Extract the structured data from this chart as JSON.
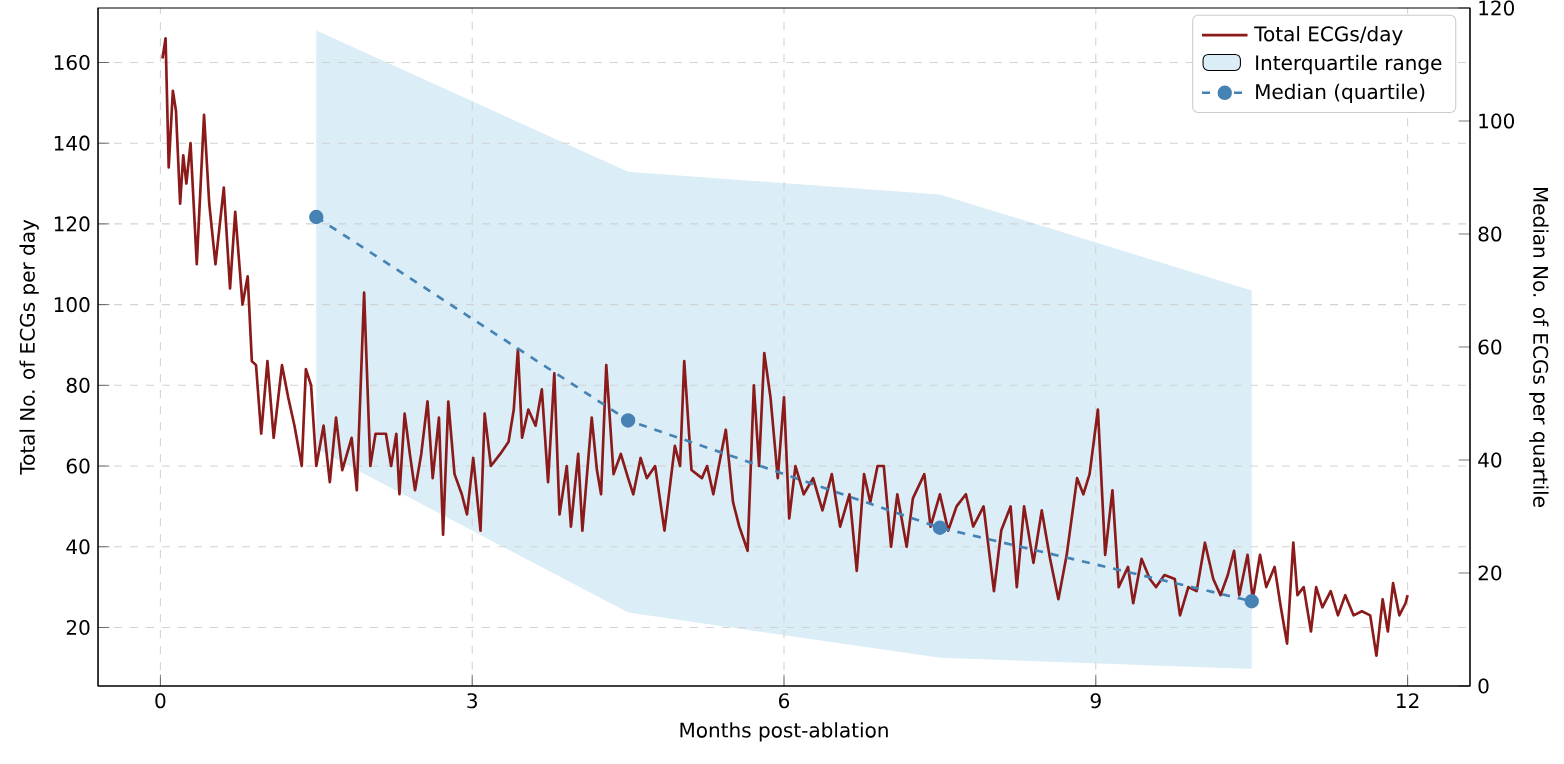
{
  "chart_data": {
    "type": "line",
    "xlabel": "Months post-ablation",
    "ylabel": "Total No. of ECGs per day",
    "y2label": "Median No. of ECGs per quartile",
    "xlim": [
      -0.6,
      12.6
    ],
    "xticks": [
      0,
      3,
      6,
      9,
      12
    ],
    "ylim": [
      5.5,
      173.5
    ],
    "yticks": [
      20,
      40,
      60,
      80,
      100,
      120,
      140,
      160
    ],
    "y2lim": [
      0,
      120
    ],
    "y2ticks": [
      0,
      20,
      40,
      60,
      80,
      100,
      120
    ],
    "grid": true,
    "legend": "top right",
    "series": [
      {
        "name": "Total ECGs/day",
        "type": "line",
        "color": "#8b1a1a",
        "line_style": "solid",
        "marker": "none",
        "x": [
          0.02,
          0.05,
          0.08,
          0.12,
          0.15,
          0.19,
          0.22,
          0.25,
          0.29,
          0.35,
          0.42,
          0.47,
          0.53,
          0.61,
          0.67,
          0.72,
          0.79,
          0.84,
          0.88,
          0.92,
          0.97,
          1.03,
          1.09,
          1.17,
          1.23,
          1.29,
          1.36,
          1.4,
          1.45,
          1.5,
          1.57,
          1.63,
          1.69,
          1.75,
          1.84,
          1.89,
          1.96,
          2.02,
          2.07,
          2.17,
          2.22,
          2.27,
          2.3,
          2.35,
          2.4,
          2.45,
          2.51,
          2.57,
          2.62,
          2.68,
          2.72,
          2.77,
          2.83,
          2.9,
          2.95,
          3.01,
          3.08,
          3.12,
          3.18,
          3.27,
          3.35,
          3.4,
          3.44,
          3.48,
          3.54,
          3.61,
          3.67,
          3.73,
          3.79,
          3.84,
          3.91,
          3.95,
          4.02,
          4.06,
          4.15,
          4.2,
          4.24,
          4.29,
          4.36,
          4.43,
          4.5,
          4.55,
          4.62,
          4.68,
          4.76,
          4.85,
          4.95,
          5.0,
          5.04,
          5.11,
          5.21,
          5.26,
          5.32,
          5.44,
          5.51,
          5.57,
          5.65,
          5.71,
          5.76,
          5.81,
          5.87,
          5.94,
          6.0,
          6.05,
          6.11,
          6.19,
          6.28,
          6.37,
          6.46,
          6.54,
          6.63,
          6.7,
          6.77,
          6.83,
          6.9,
          6.96,
          7.03,
          7.09,
          7.18,
          7.24,
          7.35,
          7.41,
          7.5,
          7.58,
          7.66,
          7.75,
          7.82,
          7.92,
          8.02,
          8.09,
          8.18,
          8.24,
          8.31,
          8.4,
          8.48,
          8.56,
          8.64,
          8.72,
          8.82,
          8.88,
          8.94,
          9.02,
          9.09,
          9.16,
          9.22,
          9.31,
          9.36,
          9.44,
          9.52,
          9.58,
          9.66,
          9.76,
          9.81,
          9.89,
          9.97,
          10.05,
          10.13,
          10.2,
          10.27,
          10.33,
          10.38,
          10.46,
          10.51,
          10.58,
          10.64,
          10.72,
          10.78,
          10.84,
          10.9,
          10.94,
          11.0,
          11.07,
          11.12,
          11.18,
          11.26,
          11.33,
          11.4,
          11.48,
          11.56,
          11.64,
          11.7,
          11.76,
          11.81,
          11.86,
          11.92,
          11.98,
          12.0
        ],
        "values": [
          161,
          166,
          134,
          153,
          148,
          125,
          137,
          130,
          140,
          110,
          147,
          125,
          110,
          129,
          104,
          123,
          100,
          107,
          86,
          85,
          68,
          86,
          67,
          85,
          77,
          70,
          60,
          84,
          80,
          60,
          70,
          56,
          72,
          59,
          67,
          54,
          103,
          60,
          68,
          68,
          60,
          68,
          53,
          73,
          63,
          54,
          63,
          76,
          57,
          72,
          43,
          76,
          58,
          53,
          48,
          62,
          44,
          73,
          60,
          63,
          66,
          74,
          89,
          67,
          74,
          70,
          79,
          56,
          83,
          48,
          60,
          45,
          63,
          44,
          72,
          59,
          53,
          85,
          58,
          63,
          57,
          53,
          62,
          57,
          60,
          44,
          65,
          60,
          86,
          59,
          57,
          60,
          53,
          69,
          51,
          45,
          39,
          80,
          60,
          88,
          77,
          57,
          77,
          47,
          60,
          53,
          57,
          49,
          58,
          45,
          53,
          34,
          58,
          51,
          60,
          60,
          40,
          53,
          40,
          52,
          58,
          45,
          53,
          44,
          50,
          53,
          45,
          50,
          29,
          44,
          50,
          30,
          50,
          36,
          49,
          37,
          27,
          38,
          57,
          53,
          58,
          74,
          38,
          54,
          30,
          35,
          26,
          37,
          32,
          30,
          33,
          32,
          23,
          30,
          29,
          41,
          32,
          28,
          33,
          39,
          28,
          38,
          27,
          38,
          30,
          35,
          25,
          16,
          41,
          28,
          30,
          19,
          30,
          25,
          29,
          23,
          28,
          23,
          24,
          23,
          13,
          27,
          19,
          31,
          23,
          26,
          28
        ]
      },
      {
        "name": "Median (quartile)",
        "axis": "y2",
        "color": "#4682b4",
        "line_style": "dashed",
        "marker": "circle",
        "x": [
          1.5,
          4.5,
          7.5,
          10.5
        ],
        "values": [
          83,
          47,
          28,
          15
        ],
        "lower": [
          42,
          13,
          5,
          3
        ],
        "upper": [
          116,
          91,
          87,
          70
        ]
      }
    ],
    "annotations": [
      "Interquartile range"
    ]
  }
}
